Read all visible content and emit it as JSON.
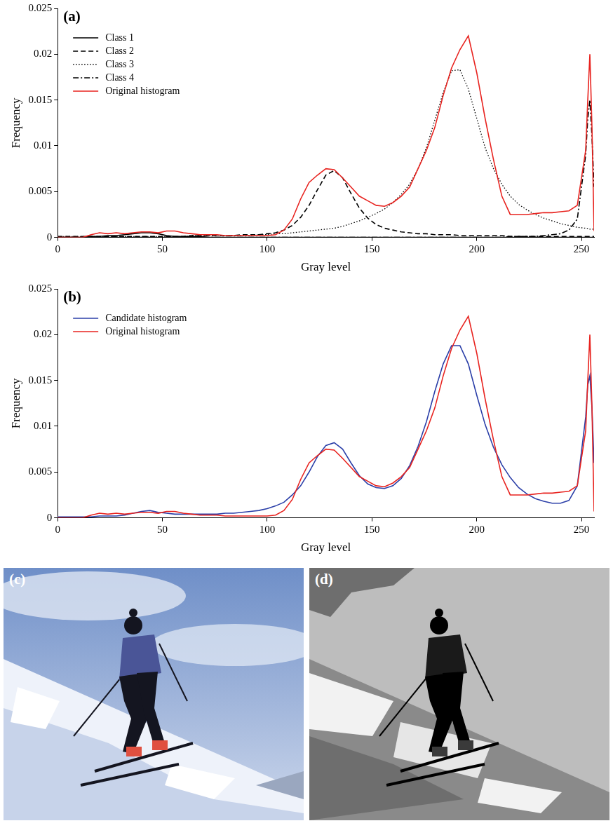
{
  "chart_data": [
    {
      "type": "line",
      "panel": "(a)",
      "x_label": "Gray level",
      "y_label": "Frequency",
      "xlim": [
        0,
        256
      ],
      "ylim": [
        0,
        0.025
      ],
      "xticks": [
        0,
        50,
        100,
        150,
        200,
        250
      ],
      "yticks": [
        0,
        0.005,
        0.01,
        0.015,
        0.02,
        0.025
      ],
      "grid": false,
      "legend": "upper left",
      "x": [
        0,
        4,
        8,
        12,
        16,
        20,
        24,
        28,
        32,
        36,
        40,
        44,
        48,
        52,
        56,
        60,
        64,
        68,
        72,
        76,
        80,
        84,
        88,
        92,
        96,
        100,
        104,
        108,
        112,
        116,
        120,
        124,
        128,
        132,
        136,
        140,
        144,
        148,
        152,
        156,
        160,
        164,
        168,
        172,
        176,
        180,
        184,
        188,
        192,
        196,
        200,
        204,
        208,
        212,
        216,
        220,
        224,
        228,
        232,
        236,
        240,
        244,
        248,
        252,
        253,
        254,
        255,
        256
      ],
      "series": [
        {
          "name": "Class 1",
          "color": "#000000",
          "line_style": "solid",
          "values": [
            0,
            0,
            0,
            0,
            0.0001,
            0.0001,
            0.0002,
            0.0002,
            0.0003,
            0.0004,
            0.0005,
            0.0005,
            0.0004,
            0.0002,
            0.0001,
            0.0001,
            0.0001,
            0.0001,
            0,
            0,
            0,
            0,
            0,
            0,
            0,
            0,
            0,
            0,
            0,
            0,
            0,
            0,
            0,
            0,
            0,
            0,
            0,
            0,
            0,
            0,
            0,
            0,
            0,
            0,
            0,
            0,
            0,
            0,
            0,
            0,
            0,
            0,
            0,
            0,
            0,
            0,
            0,
            0,
            0,
            0,
            0,
            0,
            0,
            0,
            0,
            0,
            0,
            0
          ]
        },
        {
          "name": "Class 2",
          "color": "#000000",
          "line_style": "dashed",
          "values": [
            0.0001,
            0.0001,
            0.0001,
            0.0001,
            0.0001,
            0.0001,
            0.0001,
            0.0001,
            0.0001,
            0.0001,
            0.0001,
            0.0001,
            0.0001,
            0.0001,
            0.0001,
            0.0001,
            0.0002,
            0.0002,
            0.0002,
            0.0002,
            0.0002,
            0.0002,
            0.0003,
            0.0003,
            0.0003,
            0.0004,
            0.0005,
            0.0008,
            0.0013,
            0.0022,
            0.0035,
            0.0052,
            0.0068,
            0.0073,
            0.0065,
            0.0048,
            0.0032,
            0.0021,
            0.0014,
            0.001,
            0.0008,
            0.0006,
            0.0005,
            0.0004,
            0.0004,
            0.0003,
            0.0003,
            0.0003,
            0.0002,
            0.0002,
            0.0002,
            0.0002,
            0.0002,
            0.0002,
            0.0001,
            0.0001,
            0.0001,
            0.0001,
            0.0001,
            0.0001,
            0.0001,
            0.0001,
            0.0001,
            0.0001,
            0.0001,
            0.0001,
            0.0001,
            0.0001
          ]
        },
        {
          "name": "Class 3",
          "color": "#000000",
          "line_style": "dotted",
          "values": [
            0.0001,
            0.0001,
            0.0001,
            0.0001,
            0.0001,
            0.0001,
            0.0001,
            0.0001,
            0.0001,
            0.0001,
            0.0001,
            0.0001,
            0.0001,
            0.0001,
            0.0001,
            0.0001,
            0.0002,
            0.0002,
            0.0002,
            0.0002,
            0.0002,
            0.0002,
            0.0002,
            0.0002,
            0.0003,
            0.0003,
            0.0004,
            0.0004,
            0.0005,
            0.0006,
            0.0007,
            0.0008,
            0.0009,
            0.001,
            0.0012,
            0.0015,
            0.0018,
            0.0022,
            0.0026,
            0.0031,
            0.0038,
            0.0047,
            0.0058,
            0.0075,
            0.0098,
            0.0128,
            0.0158,
            0.0182,
            0.0183,
            0.0162,
            0.013,
            0.0098,
            0.0075,
            0.0058,
            0.0045,
            0.0036,
            0.003,
            0.0025,
            0.0021,
            0.0018,
            0.0015,
            0.0013,
            0.0011,
            0.001,
            0.001,
            0.0009,
            0.0009,
            0.0009
          ]
        },
        {
          "name": "Class 4",
          "color": "#000000",
          "line_style": "dashdot",
          "values": [
            0,
            0,
            0,
            0,
            0,
            0,
            0,
            0,
            0,
            0,
            0,
            0,
            0,
            0,
            0,
            0,
            0,
            0,
            0,
            0,
            0,
            0,
            0,
            0,
            0,
            0,
            0,
            0,
            0,
            0,
            0,
            0,
            0,
            0,
            0,
            0,
            0,
            0,
            0,
            0,
            0,
            0,
            0,
            0,
            0,
            0,
            0,
            0,
            0,
            0,
            0,
            0,
            0,
            0,
            0.0001,
            0.0001,
            0.0001,
            0.0001,
            0.0002,
            0.0003,
            0.0004,
            0.0008,
            0.002,
            0.009,
            0.013,
            0.015,
            0.011,
            0.0055
          ]
        },
        {
          "name": "Original histogram",
          "color": "#e8231f",
          "line_style": "solid",
          "values": [
            0,
            0,
            0,
            0,
            0.0003,
            0.0005,
            0.0004,
            0.0005,
            0.0004,
            0.0005,
            0.0006,
            0.0006,
            0.0005,
            0.0007,
            0.0007,
            0.0005,
            0.0004,
            0.0003,
            0.0003,
            0.0003,
            0.0002,
            0.0002,
            0.0002,
            0.0002,
            0.0002,
            0.0002,
            0.0003,
            0.0008,
            0.002,
            0.0042,
            0.006,
            0.0068,
            0.0075,
            0.0074,
            0.0065,
            0.0055,
            0.0045,
            0.004,
            0.0035,
            0.0034,
            0.0038,
            0.0045,
            0.0055,
            0.0075,
            0.0095,
            0.012,
            0.0155,
            0.0185,
            0.0205,
            0.022,
            0.018,
            0.013,
            0.0085,
            0.0045,
            0.0025,
            0.0025,
            0.0025,
            0.0026,
            0.0027,
            0.0027,
            0.0028,
            0.0029,
            0.0035,
            0.0095,
            0.015,
            0.02,
            0.012,
            0.0007
          ]
        }
      ]
    },
    {
      "type": "line",
      "panel": "(b)",
      "x_label": "Gray level",
      "y_label": "Frequency",
      "xlim": [
        0,
        256
      ],
      "ylim": [
        0,
        0.025
      ],
      "xticks": [
        0,
        50,
        100,
        150,
        200,
        250
      ],
      "yticks": [
        0,
        0.005,
        0.01,
        0.015,
        0.02,
        0.025
      ],
      "grid": false,
      "legend": "upper left",
      "x": [
        0,
        4,
        8,
        12,
        16,
        20,
        24,
        28,
        32,
        36,
        40,
        44,
        48,
        52,
        56,
        60,
        64,
        68,
        72,
        76,
        80,
        84,
        88,
        92,
        96,
        100,
        104,
        108,
        112,
        116,
        120,
        124,
        128,
        132,
        136,
        140,
        144,
        148,
        152,
        156,
        160,
        164,
        168,
        172,
        176,
        180,
        184,
        188,
        192,
        196,
        200,
        204,
        208,
        212,
        216,
        220,
        224,
        228,
        232,
        236,
        240,
        244,
        248,
        252,
        253,
        254,
        255,
        256
      ],
      "series": [
        {
          "name": "Candidate histogram",
          "color": "#2b3fa8",
          "line_style": "solid",
          "values": [
            0.0001,
            0.0001,
            0.0001,
            0.0001,
            0.0001,
            0.0002,
            0.0002,
            0.0002,
            0.0003,
            0.0005,
            0.0007,
            0.0008,
            0.0006,
            0.0005,
            0.0004,
            0.0004,
            0.0004,
            0.0004,
            0.0004,
            0.0004,
            0.0005,
            0.0005,
            0.0006,
            0.0007,
            0.0008,
            0.001,
            0.0013,
            0.0017,
            0.0025,
            0.0035,
            0.005,
            0.0067,
            0.0079,
            0.0082,
            0.0075,
            0.006,
            0.0046,
            0.0037,
            0.0033,
            0.0032,
            0.0035,
            0.0043,
            0.0057,
            0.0078,
            0.0105,
            0.0138,
            0.0168,
            0.0188,
            0.0188,
            0.0168,
            0.0134,
            0.0102,
            0.0077,
            0.0058,
            0.0044,
            0.0033,
            0.0026,
            0.0021,
            0.0018,
            0.0016,
            0.0016,
            0.0019,
            0.0035,
            0.011,
            0.0145,
            0.0155,
            0.012,
            0.006
          ]
        },
        {
          "name": "Original histogram",
          "color": "#e8231f",
          "line_style": "solid",
          "values": [
            0,
            0,
            0,
            0,
            0.0003,
            0.0005,
            0.0004,
            0.0005,
            0.0004,
            0.0005,
            0.0006,
            0.0006,
            0.0005,
            0.0007,
            0.0007,
            0.0005,
            0.0004,
            0.0003,
            0.0003,
            0.0003,
            0.0002,
            0.0002,
            0.0002,
            0.0002,
            0.0002,
            0.0002,
            0.0003,
            0.0008,
            0.002,
            0.0042,
            0.006,
            0.0068,
            0.0075,
            0.0074,
            0.0065,
            0.0055,
            0.0045,
            0.004,
            0.0035,
            0.0034,
            0.0038,
            0.0045,
            0.0055,
            0.0075,
            0.0095,
            0.012,
            0.0155,
            0.0185,
            0.0205,
            0.022,
            0.018,
            0.013,
            0.0085,
            0.0045,
            0.0025,
            0.0025,
            0.0025,
            0.0026,
            0.0027,
            0.0027,
            0.0028,
            0.0029,
            0.0035,
            0.0095,
            0.015,
            0.02,
            0.012,
            0.0007
          ]
        }
      ]
    }
  ],
  "images": [
    {
      "label": "(c)"
    },
    {
      "label": "(d)"
    }
  ]
}
